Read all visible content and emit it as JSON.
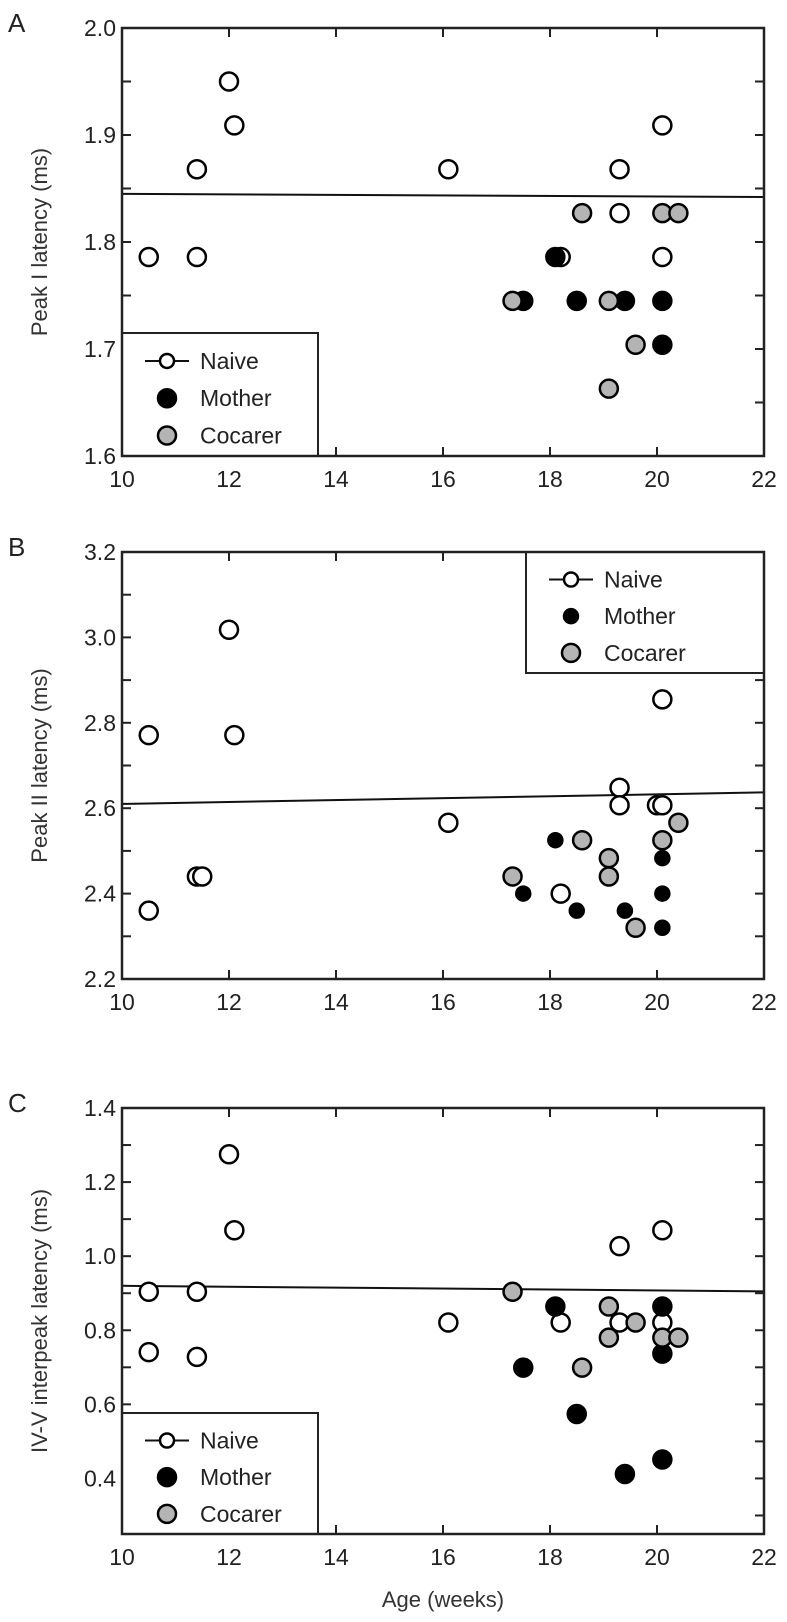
{
  "chart_data": [
    {
      "type": "scatter",
      "panel_label": "A",
      "xlabel": "",
      "ylabel": "Peak I latency (ms)",
      "xlim": [
        10,
        22
      ],
      "ylim": [
        1.6,
        2.0
      ],
      "xticks": [
        "10",
        "12",
        "14",
        "16",
        "18",
        "20",
        "22"
      ],
      "yticks": [
        "1.6",
        "1.7",
        "1.8",
        "1.9",
        "2.0"
      ],
      "legend_position": "bottom-left",
      "fit_line": {
        "x": [
          10,
          22
        ],
        "y": [
          1.845,
          1.842
        ]
      },
      "series": [
        {
          "name": "Naive",
          "style": "open",
          "points": [
            [
              10.5,
              1.786
            ],
            [
              11.4,
              1.786
            ],
            [
              11.4,
              1.868
            ],
            [
              12.0,
              1.95
            ],
            [
              12.1,
              1.909
            ],
            [
              16.1,
              1.868
            ],
            [
              18.2,
              1.786
            ],
            [
              19.3,
              1.868
            ],
            [
              19.3,
              1.827
            ],
            [
              20.1,
              1.909
            ],
            [
              20.1,
              1.786
            ]
          ]
        },
        {
          "name": "Mother",
          "style": "black",
          "points": [
            [
              17.5,
              1.745
            ],
            [
              18.1,
              1.786
            ],
            [
              18.5,
              1.745
            ],
            [
              19.4,
              1.745
            ],
            [
              20.1,
              1.745
            ],
            [
              20.1,
              1.704
            ]
          ]
        },
        {
          "name": "Cocarer",
          "style": "gray",
          "points": [
            [
              17.3,
              1.745
            ],
            [
              18.6,
              1.827
            ],
            [
              19.1,
              1.745
            ],
            [
              19.1,
              1.663
            ],
            [
              19.6,
              1.704
            ],
            [
              20.1,
              1.827
            ],
            [
              20.4,
              1.827
            ]
          ]
        }
      ]
    },
    {
      "type": "scatter",
      "panel_label": "B",
      "xlabel": "",
      "ylabel": "Peak II latency (ms)",
      "xlim": [
        10,
        22
      ],
      "ylim": [
        2.2,
        3.2
      ],
      "xticks": [
        "10",
        "12",
        "14",
        "16",
        "18",
        "20",
        "22"
      ],
      "yticks": [
        "2.2",
        "2.4",
        "2.6",
        "2.8",
        "3.0",
        "3.2"
      ],
      "legend_position": "top-right",
      "fit_line": {
        "x": [
          10,
          22
        ],
        "y": [
          2.61,
          2.637
        ]
      },
      "series": [
        {
          "name": "Naive",
          "style": "open",
          "points": [
            [
              10.5,
              2.771
            ],
            [
              10.5,
              2.36
            ],
            [
              11.4,
              2.44
            ],
            [
              11.5,
              2.44
            ],
            [
              12.0,
              3.018
            ],
            [
              12.1,
              2.771
            ],
            [
              16.1,
              2.566
            ],
            [
              18.2,
              2.4
            ],
            [
              19.3,
              2.648
            ],
            [
              19.3,
              2.607
            ],
            [
              20.0,
              2.607
            ],
            [
              20.1,
              2.607
            ],
            [
              20.1,
              2.855
            ]
          ]
        },
        {
          "name": "Mother",
          "style": "black",
          "points": [
            [
              17.5,
              2.4
            ],
            [
              18.1,
              2.525
            ],
            [
              18.5,
              2.36
            ],
            [
              19.4,
              2.36
            ],
            [
              20.1,
              2.483
            ],
            [
              20.1,
              2.4
            ],
            [
              20.1,
              2.32
            ]
          ]
        },
        {
          "name": "Cocarer",
          "style": "gray",
          "points": [
            [
              17.3,
              2.44
            ],
            [
              18.6,
              2.525
            ],
            [
              19.1,
              2.483
            ],
            [
              19.1,
              2.44
            ],
            [
              19.6,
              2.32
            ],
            [
              20.1,
              2.525
            ],
            [
              20.4,
              2.566
            ]
          ]
        }
      ]
    },
    {
      "type": "scatter",
      "panel_label": "C",
      "xlabel": "Age (weeks)",
      "ylabel": "IV-V interpeak latency (ms)",
      "xlim": [
        10,
        22
      ],
      "ylim": [
        0.25,
        1.4
      ],
      "xticks": [
        "10",
        "12",
        "14",
        "16",
        "18",
        "20",
        "22"
      ],
      "yticks": [
        "0.4",
        "0.6",
        "0.8",
        "1.0",
        "1.2",
        "1.4"
      ],
      "legend_position": "bottom-left",
      "fit_line": {
        "x": [
          10,
          22
        ],
        "y": [
          0.92,
          0.905
        ]
      },
      "series": [
        {
          "name": "Naive",
          "style": "open",
          "points": [
            [
              10.5,
              0.904
            ],
            [
              10.5,
              0.741
            ],
            [
              11.4,
              0.904
            ],
            [
              11.4,
              0.728
            ],
            [
              12.0,
              1.275
            ],
            [
              12.1,
              1.07
            ],
            [
              16.1,
              0.821
            ],
            [
              18.2,
              0.821
            ],
            [
              19.3,
              1.027
            ],
            [
              19.3,
              0.821
            ],
            [
              20.1,
              1.07
            ],
            [
              20.1,
              0.821
            ]
          ]
        },
        {
          "name": "Mother",
          "style": "black",
          "points": [
            [
              17.5,
              0.699
            ],
            [
              18.1,
              0.864
            ],
            [
              18.5,
              0.574
            ],
            [
              19.4,
              0.412
            ],
            [
              20.1,
              0.864
            ],
            [
              20.1,
              0.737
            ],
            [
              20.1,
              0.451
            ]
          ]
        },
        {
          "name": "Cocarer",
          "style": "gray",
          "points": [
            [
              17.3,
              0.904
            ],
            [
              18.6,
              0.699
            ],
            [
              19.1,
              0.864
            ],
            [
              19.1,
              0.78
            ],
            [
              19.6,
              0.821
            ],
            [
              20.1,
              0.78
            ],
            [
              20.4,
              0.78
            ]
          ]
        }
      ]
    }
  ],
  "colors": {
    "open": "#ffffff",
    "black": "#000000",
    "gray": "#b4b4b4",
    "axis": "#222222"
  }
}
